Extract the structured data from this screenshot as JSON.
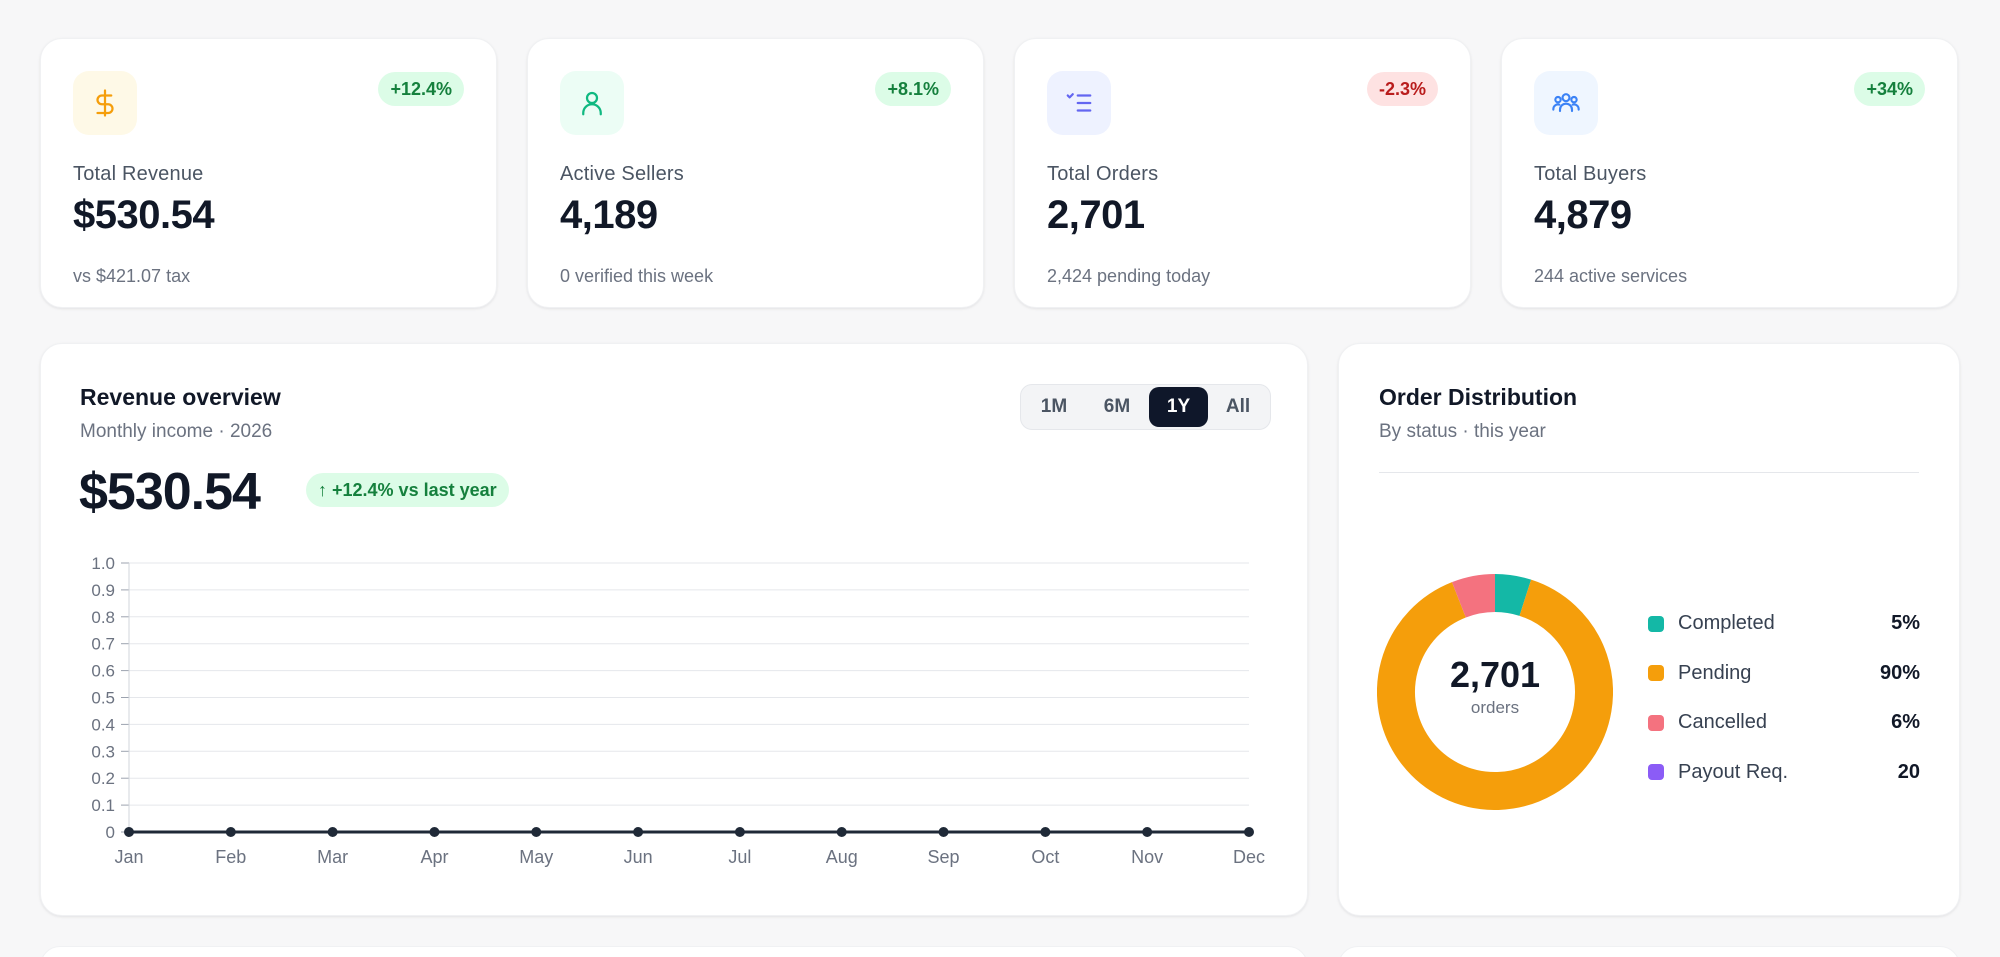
{
  "stats": [
    {
      "label": "Total Revenue",
      "value": "$530.54",
      "sub": "vs $421.07 tax",
      "badge": "+12.4%",
      "trend": "up",
      "icon": "dollar-icon",
      "icon_color": "#f59e0b",
      "icon_bg": "#fef9e7"
    },
    {
      "label": "Active Sellers",
      "value": "4,189",
      "sub": "0 verified this week",
      "badge": "+8.1%",
      "trend": "up",
      "icon": "user-icon",
      "icon_color": "#10b981",
      "icon_bg": "#ecfdf5"
    },
    {
      "label": "Total Orders",
      "value": "2,701",
      "sub": "2,424 pending today",
      "badge": "-2.3%",
      "trend": "down",
      "icon": "checklist-icon",
      "icon_color": "#6366f1",
      "icon_bg": "#eef2ff"
    },
    {
      "label": "Total Buyers",
      "value": "4,879",
      "sub": "244 active services",
      "badge": "+34%",
      "trend": "up",
      "icon": "users-icon",
      "icon_color": "#3b82f6",
      "icon_bg": "#eff6ff"
    }
  ],
  "revenue": {
    "title": "Revenue overview",
    "subtitle": "Monthly income · 2026",
    "amount": "$530.54",
    "growth": "↑ +12.4% vs last year",
    "ranges": [
      "1M",
      "6M",
      "1Y",
      "All"
    ],
    "active_range": "1Y"
  },
  "chart_data": {
    "type": "line",
    "categories": [
      "Jan",
      "Feb",
      "Mar",
      "Apr",
      "May",
      "Jun",
      "Jul",
      "Aug",
      "Sep",
      "Oct",
      "Nov",
      "Dec"
    ],
    "values": [
      0,
      0,
      0,
      0,
      0,
      0,
      0,
      0,
      0,
      0,
      0,
      0
    ],
    "ylim": [
      0,
      1.0
    ],
    "yticks": [
      "0",
      "0.1",
      "0.2",
      "0.3",
      "0.4",
      "0.5",
      "0.6",
      "0.7",
      "0.8",
      "0.9",
      "1.0"
    ],
    "grid": true,
    "line_color": "#1f2937"
  },
  "distribution": {
    "title": "Order Distribution",
    "subtitle": "By status · this year",
    "center_value": "2,701",
    "center_label": "orders",
    "segments": [
      {
        "name": "Completed",
        "value": "5%",
        "share": 5,
        "color": "#14b8a6"
      },
      {
        "name": "Pending",
        "value": "90%",
        "share": 90,
        "color": "#f59e0b"
      },
      {
        "name": "Cancelled",
        "value": "6%",
        "share": 6,
        "color": "#f4727f"
      },
      {
        "name": "Payout Req.",
        "value": "20",
        "share": 0,
        "color": "#8b5cf6"
      }
    ]
  }
}
